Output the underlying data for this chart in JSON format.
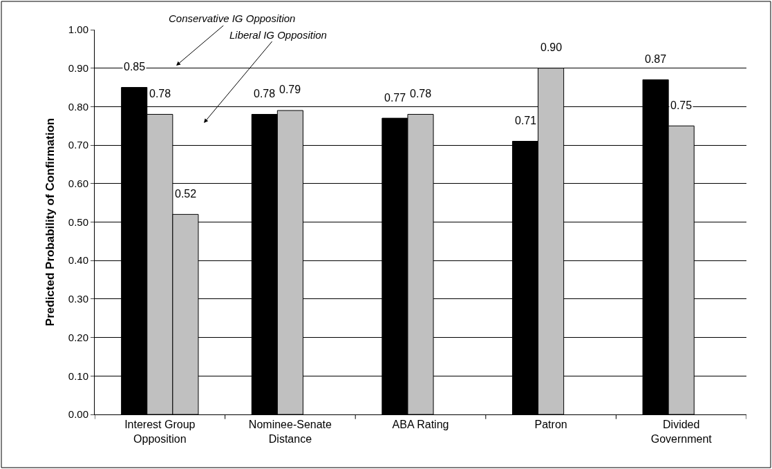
{
  "chart_data": {
    "type": "bar",
    "ylabel": "Predicted Probability of Confirmation",
    "categories": [
      "Interest Group Opposition",
      "Nominee-Senate Distance",
      "ABA Rating",
      "Patron",
      "Divided Government"
    ],
    "series": [
      {
        "color": "#000000",
        "values": [
          0.85,
          0.78,
          0.77,
          0.71,
          0.87
        ],
        "value_labels": [
          "0.85",
          "0.78",
          "0.77",
          "0.71",
          "0.87"
        ]
      },
      {
        "color": "#c0c0c0",
        "values": [
          0.78,
          0.79,
          0.78,
          0.9,
          0.75
        ],
        "value_labels": [
          "0.78",
          "0.79",
          "0.78",
          "0.90",
          "0.75"
        ]
      },
      {
        "color": "#c0c0c0",
        "values": [
          0.52,
          null,
          null,
          null,
          null
        ],
        "value_labels": [
          "0.52",
          null,
          null,
          null,
          null
        ]
      }
    ],
    "ylim": [
      0,
      1
    ],
    "yticks": [
      {
        "value": 0,
        "label": "0.00"
      },
      {
        "value": 0.1,
        "label": "0.10"
      },
      {
        "value": 0.2,
        "label": "0.20"
      },
      {
        "value": 0.3,
        "label": "0.30"
      },
      {
        "value": 0.4,
        "label": "0.40"
      },
      {
        "value": 0.5,
        "label": "0.50"
      },
      {
        "value": 0.6,
        "label": "0.60"
      },
      {
        "value": 0.7,
        "label": "0.70"
      },
      {
        "value": 0.8,
        "label": "0.80"
      },
      {
        "value": 0.9,
        "label": "0.90"
      },
      {
        "value": 1,
        "label": "1.00"
      }
    ],
    "grid": "y",
    "annotations": [
      "Conservative IG Opposition",
      "Liberal IG Opposition"
    ]
  }
}
